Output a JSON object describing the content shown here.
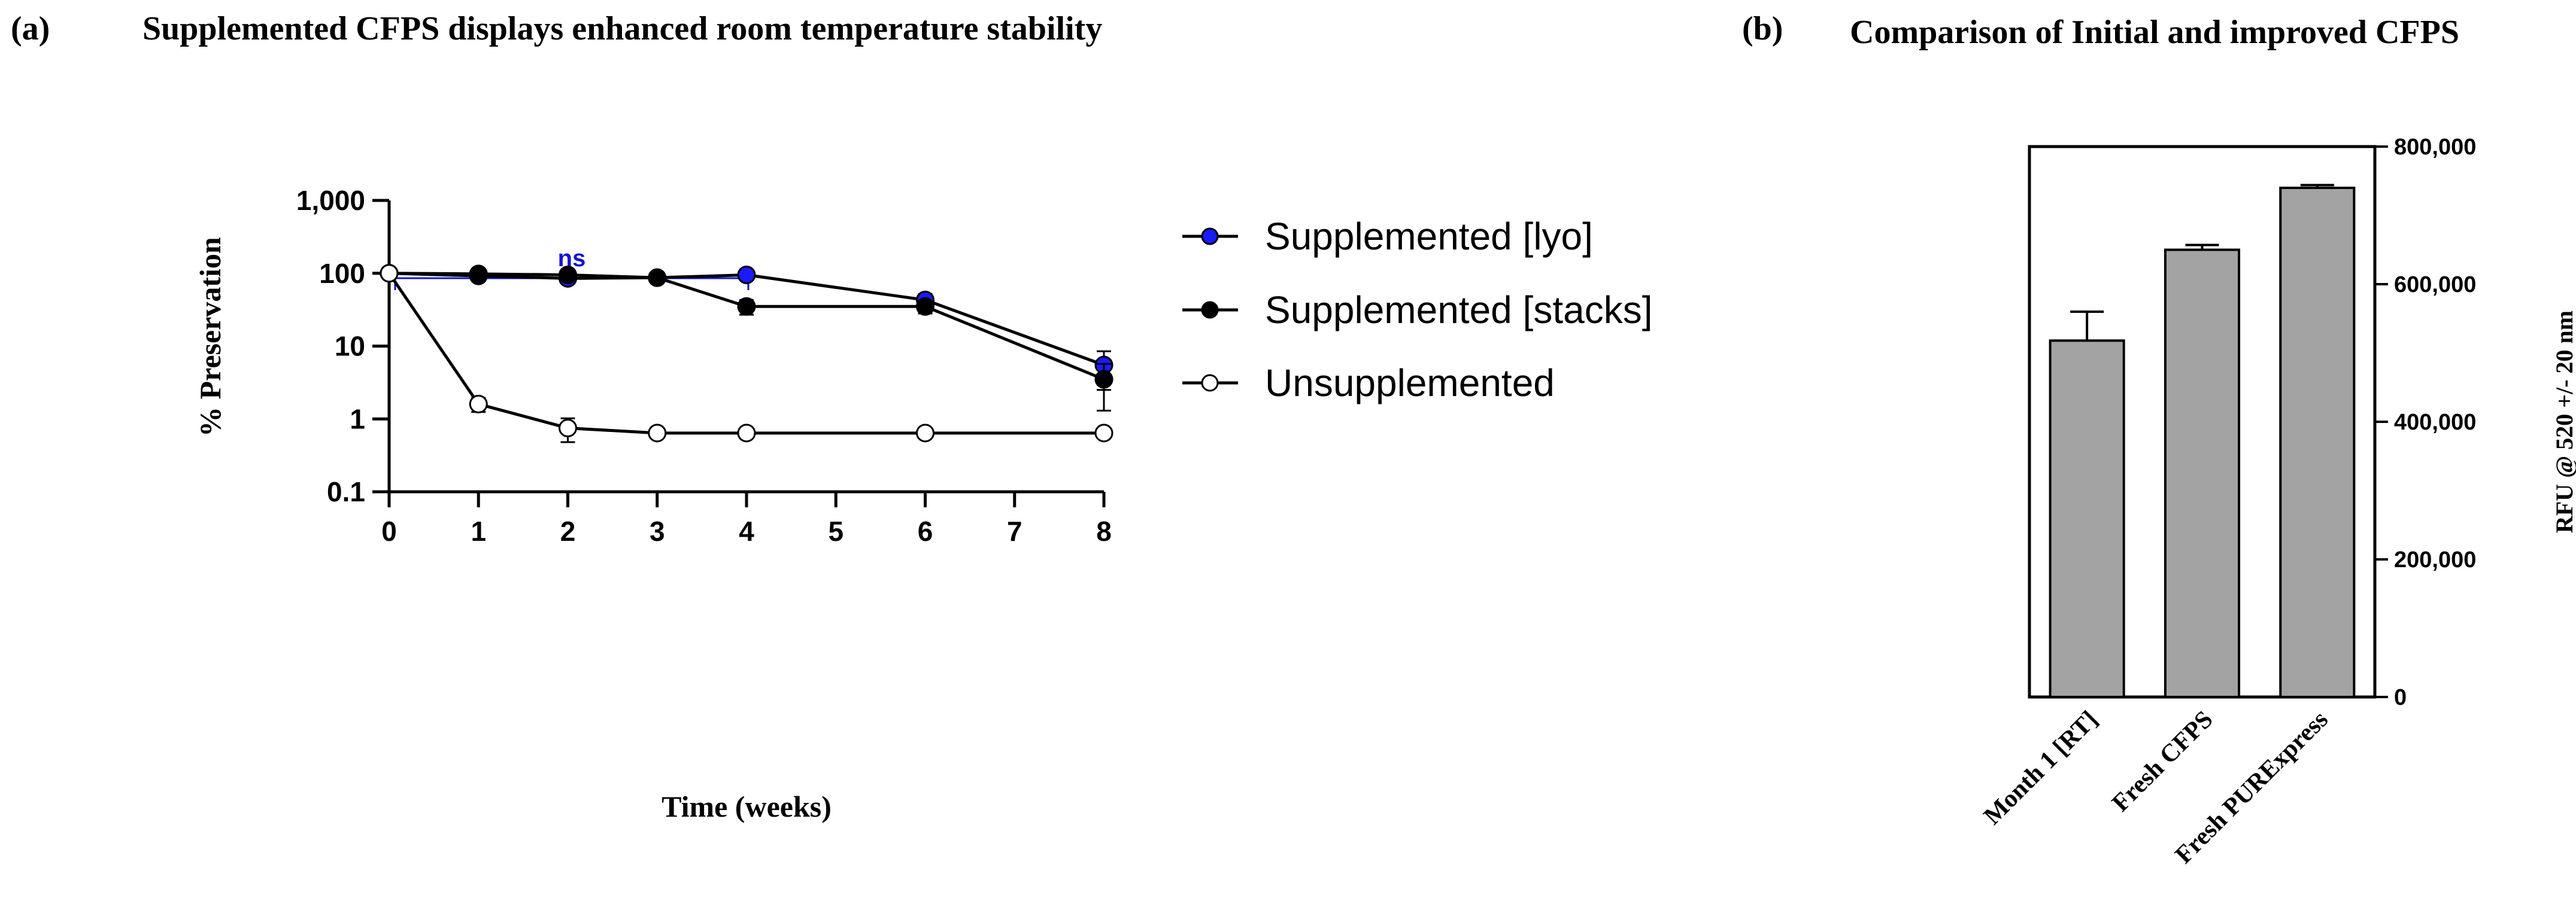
{
  "panels": {
    "a": {
      "label": "(a)",
      "title": "Supplemented CFPS displays enhanced room temperature stability"
    },
    "b": {
      "label": "(b)",
      "title": "Comparison of Initial and improved CFPS"
    }
  },
  "colors": {
    "lyo": "#1a1aff",
    "stacks": "#000000",
    "unsupp": "#ffffff",
    "bar": "#a3a3a3",
    "ns": "#1515d0"
  },
  "chart_data": [
    {
      "type": "line",
      "title": "Supplemented CFPS displays enhanced room temperature stability",
      "xlabel": "Time (weeks)",
      "ylabel": "% Preservation",
      "yscale": "log",
      "xlim": [
        0,
        8
      ],
      "ylim": [
        0.1,
        1000
      ],
      "xticks": [
        "0",
        "1",
        "2",
        "3",
        "4",
        "5",
        "6",
        "7",
        "8"
      ],
      "yticks": [
        "0.1",
        "1",
        "10",
        "100",
        "1,000"
      ],
      "annotation": "ns",
      "series": [
        {
          "name": "Supplemented [lyo]",
          "marker": "filled-blue",
          "x": [
            0,
            1,
            2,
            3,
            4,
            6,
            8
          ],
          "y": [
            100,
            92,
            85,
            87,
            95,
            43,
            5.5
          ],
          "err": [
            0,
            8,
            5,
            3,
            5,
            9,
            3
          ]
        },
        {
          "name": "Supplemented [stacks]",
          "marker": "filled-black",
          "x": [
            0,
            1,
            2,
            3,
            4,
            6,
            8
          ],
          "y": [
            100,
            98,
            95,
            87,
            35,
            35,
            3.5
          ],
          "err": [
            0,
            5,
            4,
            3,
            8,
            7,
            2.2
          ]
        },
        {
          "name": "Unsupplemented",
          "marker": "open-circle",
          "x": [
            0,
            1,
            2,
            3,
            4,
            6,
            8
          ],
          "y": [
            100,
            1.6,
            0.75,
            0.64,
            0.64,
            0.64,
            0.64
          ],
          "err": [
            0,
            0.35,
            0.27,
            0.05,
            0.05,
            0.05,
            0.05
          ]
        }
      ]
    },
    {
      "type": "bar",
      "title": "Comparison of Initial and improved CFPS",
      "ylabel": "RFU @ 520 +/- 20 nm",
      "ylim": [
        0,
        800000
      ],
      "yticks": [
        "0",
        "200,000",
        "400,000",
        "600,000",
        "800,000"
      ],
      "categories": [
        "Month 1 [RT]",
        "Fresh CFPS",
        "Fresh PURExpress"
      ],
      "values": [
        518000,
        650000,
        740000
      ],
      "err": [
        42000,
        7000,
        4000
      ]
    }
  ]
}
